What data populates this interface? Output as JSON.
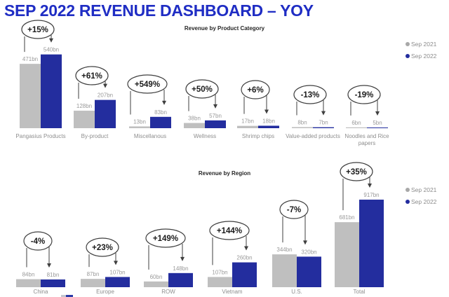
{
  "page_title": "SEP 2022 REVENUE DASHBOARD – YOY",
  "colors": {
    "title_blue": "#1F2DC4",
    "bar_blue": "#232D9E",
    "bar_gray": "#BFBFBF",
    "value_label_gray": "#9A9A9A",
    "category_label_gray": "#8E8E8E",
    "annotation_ink": "#3F3F3F",
    "legend_text_gray": "#8c8c8c"
  },
  "legend": {
    "series1": "Sep 2021",
    "series2": "Sep 2022"
  },
  "chart_data": [
    {
      "type": "bar",
      "title": "Revenue by Product Category",
      "unit": "bn",
      "legend_position": "top-right",
      "grid": false,
      "ylim": [
        0,
        540
      ],
      "categories": [
        "Pangasius Products",
        "By-product",
        "Miscellanous",
        "Wellness",
        "Shrimp chips",
        "Value-added products",
        "Noodles and Rice papers"
      ],
      "series": [
        {
          "name": "Sep 2021",
          "color": "#BFBFBF",
          "values": [
            471,
            128,
            13,
            38,
            17,
            8,
            6
          ]
        },
        {
          "name": "Sep 2022",
          "color": "#232D9E",
          "values": [
            540,
            207,
            83,
            57,
            18,
            7,
            5
          ]
        }
      ],
      "value_labels": {
        "Sep 2021": [
          "471bn",
          "128bn",
          "13bn",
          "38bn",
          "17bn",
          "8bn",
          "6bn"
        ],
        "Sep 2022": [
          "540bn",
          "207bn",
          "83bn",
          "57bn",
          "18bn",
          "7bn",
          "5bn"
        ]
      },
      "yoy_deltas": [
        "+15%",
        "+61%",
        "+549%",
        "+50%",
        "+6%",
        "-13%",
        "-19%"
      ]
    },
    {
      "type": "bar",
      "title": "Revenue by Region",
      "unit": "bn",
      "legend_position": "right",
      "grid": false,
      "ylim": [
        0,
        917
      ],
      "categories": [
        "China",
        "Europe",
        "ROW",
        "Vietnam",
        "U.S.",
        "Total"
      ],
      "series": [
        {
          "name": "Sep 2021",
          "color": "#BFBFBF",
          "values": [
            84,
            87,
            60,
            107,
            344,
            681
          ]
        },
        {
          "name": "Sep 2022",
          "color": "#232D9E",
          "values": [
            81,
            107,
            148,
            260,
            320,
            917
          ]
        }
      ],
      "value_labels": {
        "Sep 2021": [
          "84bn",
          "87bn",
          "60bn",
          "107bn",
          "344bn",
          "681bn"
        ],
        "Sep 2022": [
          "81bn",
          "107bn",
          "148bn",
          "260bn",
          "320bn",
          "917bn"
        ]
      },
      "yoy_deltas": [
        "-4%",
        "+23%",
        "+149%",
        "+144%",
        "-7%",
        "+35%"
      ]
    }
  ]
}
